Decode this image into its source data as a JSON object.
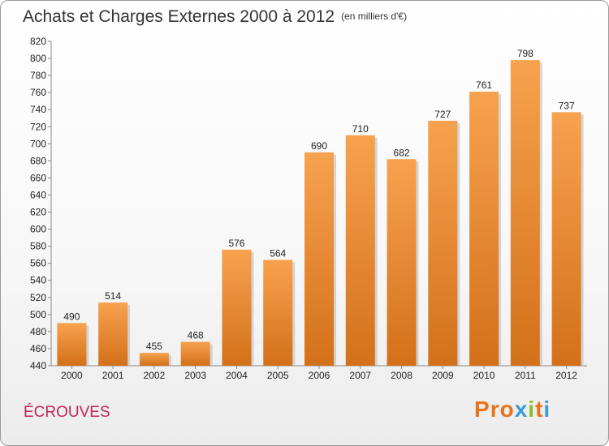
{
  "header": {
    "title": "Achats et Charges Externes 2000 à 2012",
    "unit": "(en milliers d'€)"
  },
  "footer": {
    "commune": "ÉCROUVES",
    "logo": "Proxiti",
    "logo_colors": [
      "#e8731c",
      "#e8731c",
      "#e8731c",
      "#3b9bd8",
      "#8bbf2a",
      "#e8731c",
      "#3b9bd8"
    ]
  },
  "chart_data": {
    "type": "bar",
    "title": "Achats et Charges Externes 2000 à 2012",
    "subtitle": "(en milliers d'€)",
    "xlabel": "",
    "ylabel": "",
    "categories": [
      "2000",
      "2001",
      "2002",
      "2003",
      "2004",
      "2005",
      "2006",
      "2007",
      "2008",
      "2009",
      "2010",
      "2011",
      "2012"
    ],
    "values": [
      490,
      514,
      455,
      468,
      576,
      564,
      690,
      710,
      682,
      727,
      761,
      798,
      737
    ],
    "ylim": [
      440,
      820
    ],
    "ytick_step": 20,
    "grid": false,
    "legend": "none",
    "bar_color_top": "#f7a24e",
    "bar_color_bottom": "#d4701a"
  }
}
